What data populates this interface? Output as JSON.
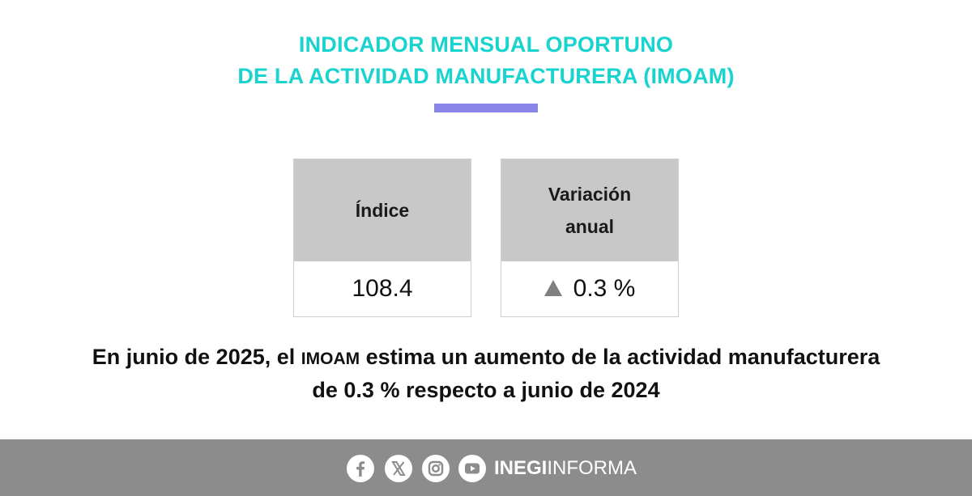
{
  "title": {
    "line1": "INDICADOR MENSUAL OPORTUNO",
    "line2": "DE LA ACTIVIDAD MANUFACTURERA (IMOAM)"
  },
  "cards": {
    "index": {
      "label": "Índice",
      "value": "108.4"
    },
    "annual": {
      "label_line1": "Variación",
      "label_line2": "anual",
      "value": "0.3 %"
    }
  },
  "statement": {
    "part1": "En junio de 2025, el ",
    "acronym": "IMOAM",
    "part2": " estima un aumento de la actividad manufacturera",
    "line2": "de 0.3 % respecto a junio de 2024"
  },
  "footer": {
    "brand_bold": "INEGI",
    "brand_light": "INFORMA",
    "icons": [
      "facebook-icon",
      "x-icon",
      "instagram-icon",
      "youtube-icon"
    ]
  },
  "colors": {
    "title": "#19d3cf",
    "accent_bar": "#8a86e8",
    "card_header": "#c8c8c8",
    "footer": "#8c8c8c",
    "arrow": "#808080"
  }
}
